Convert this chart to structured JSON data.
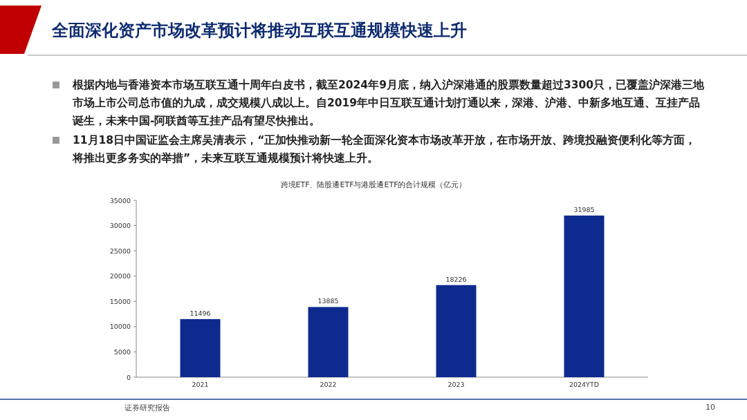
{
  "chart_data": {
    "type": "bar",
    "title": "全面深化资产市场改革预计将推动互联互通规模快速上升",
    "subtitle": "跨境ETF、陆股通ETF与港股通ETF的合计规模（亿元）",
    "annotations": [
      "根据内地与香港资本市场互联互通十周年白皮书，截至2024年9月底，纳入沪深港通的股票数量超过3300只，已覆盖沪深港三地市场上市公司总市值的九成，成交规模八成以上。自2019年中日互联互通计划打通以来，深港、沪港、中新多地互通、互挂产品诞生，未来中国-阿联酋等互挂产品有望尽快推出。",
      "11月18日中国证监会主席吴清表示，“正加快推动新一轮全面深化资本市场改革开放，在市场开放、跨境投融资便利化等方面，将推出更多务实的举措”，未来互联互通规模预计将快速上升。",
      "证券研究报告",
      "10"
    ],
    "categories": [
      "2021",
      "2022",
      "2023",
      "2024YTD"
    ],
    "values": [
      11496,
      13885,
      18226,
      31985
    ],
    "color": "#0d2a8f",
    "ylim": [
      0,
      35000
    ],
    "yticks": [
      0,
      5000,
      10000,
      15000,
      20000,
      25000,
      30000,
      35000
    ],
    "data_labels": true
  }
}
